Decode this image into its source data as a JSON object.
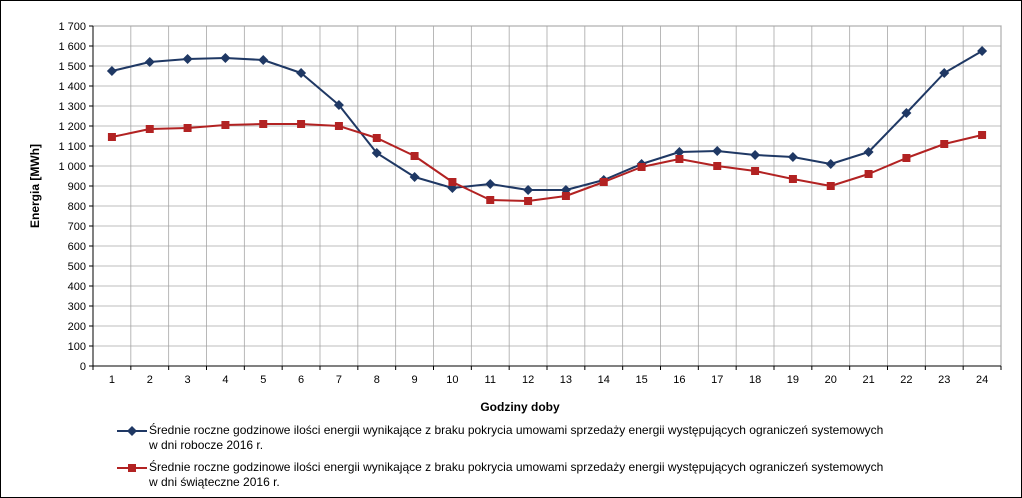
{
  "chart_data": {
    "type": "line",
    "xlabel": "Godziny doby",
    "ylabel": "Energia [MWh]",
    "x": [
      1,
      2,
      3,
      4,
      5,
      6,
      7,
      8,
      9,
      10,
      11,
      12,
      13,
      14,
      15,
      16,
      17,
      18,
      19,
      20,
      21,
      22,
      23,
      24
    ],
    "ylim": [
      0,
      1700
    ],
    "yticks": [
      0,
      100,
      200,
      300,
      400,
      500,
      600,
      700,
      800,
      900,
      1000,
      1100,
      1200,
      1300,
      1400,
      1500,
      1600,
      1700
    ],
    "ytick_labels": [
      "0",
      "100",
      "200",
      "300",
      "400",
      "500",
      "600",
      "700",
      "800",
      "900",
      "1 000",
      "1 100",
      "1 200",
      "1 300",
      "1 400",
      "1 500",
      "1 600",
      "1 700"
    ],
    "grid": true,
    "legend_position": "bottom",
    "series": [
      {
        "name": "Średnie roczne godzinowe ilości energii wynikające z braku pokrycia umowami sprzedaży energii występujących ograniczeń systemowych w dni robocze 2016 r.",
        "name_line1": "Średnie roczne godzinowe ilości energii wynikające z braku pokrycia umowami sprzedaży energii występujących ograniczeń systemowych",
        "name_line2": "w dni robocze 2016 r.",
        "color": "#1f3864",
        "marker": "diamond",
        "values": [
          1475,
          1520,
          1535,
          1540,
          1530,
          1465,
          1305,
          1065,
          945,
          890,
          910,
          880,
          880,
          930,
          1010,
          1070,
          1075,
          1055,
          1045,
          1010,
          1070,
          1265,
          1465,
          1575
        ]
      },
      {
        "name": "Średnie roczne godzinowe ilości energii wynikające z braku pokrycia umowami sprzedaży energii występujących ograniczeń systemowych w dni świąteczne 2016 r.",
        "name_line1": "Średnie roczne godzinowe ilości energii wynikające z braku pokrycia umowami sprzedaży energii występujących ograniczeń systemowych",
        "name_line2": "w dni świąteczne 2016 r.",
        "color": "#b22222",
        "marker": "square",
        "values": [
          1145,
          1185,
          1190,
          1205,
          1210,
          1210,
          1200,
          1140,
          1050,
          920,
          830,
          825,
          850,
          920,
          995,
          1035,
          1000,
          975,
          935,
          900,
          960,
          1040,
          1110,
          1155
        ]
      }
    ]
  }
}
